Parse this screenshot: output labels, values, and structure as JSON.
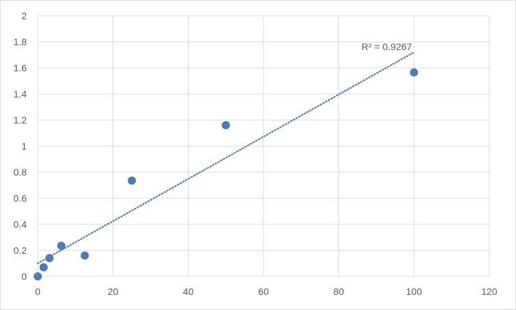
{
  "chart_data": {
    "type": "scatter",
    "title": "",
    "xlabel": "",
    "ylabel": "",
    "xlim": [
      0,
      120
    ],
    "ylim": [
      0,
      2
    ],
    "x_ticks": [
      "0",
      "20",
      "40",
      "60",
      "80",
      "100",
      "120"
    ],
    "y_ticks": [
      "0",
      "0.2",
      "0.4",
      "0.6",
      "0.8",
      "1",
      "1.2",
      "1.4",
      "1.6",
      "1.8",
      "2"
    ],
    "grid": true,
    "legend": "none",
    "series": [
      {
        "x": [
          0,
          1.5625,
          3.125,
          6.25,
          12.5,
          25,
          50,
          100
        ],
        "y": [
          0.0,
          0.07,
          0.14,
          0.235,
          0.16,
          0.735,
          1.16,
          1.565
        ],
        "color": "#4a7ebb"
      }
    ],
    "trendline": {
      "type": "linear",
      "style": "dotted",
      "color": "#4a7ebb",
      "x_range": [
        0,
        100
      ],
      "y_start": 0.1,
      "y_end": 1.72
    },
    "annotations": [
      {
        "text": "R² = 0.9267"
      }
    ]
  }
}
